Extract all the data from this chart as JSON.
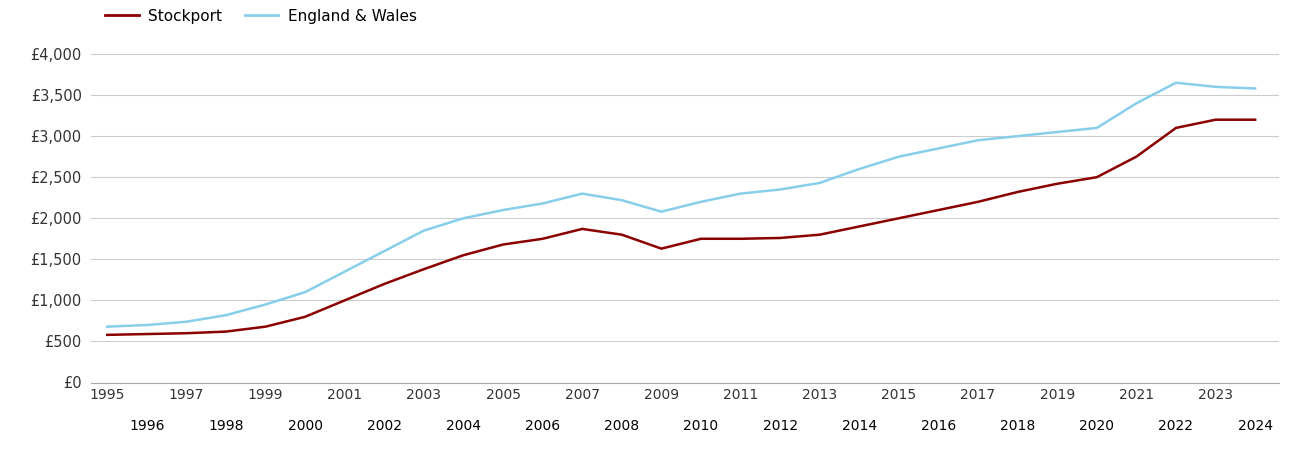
{
  "years": [
    1995,
    1996,
    1997,
    1998,
    1999,
    2000,
    2001,
    2002,
    2003,
    2004,
    2005,
    2006,
    2007,
    2008,
    2009,
    2010,
    2011,
    2012,
    2013,
    2014,
    2015,
    2016,
    2017,
    2018,
    2019,
    2020,
    2021,
    2022,
    2023,
    2024
  ],
  "stockport": [
    580,
    590,
    600,
    620,
    680,
    800,
    1000,
    1200,
    1380,
    1550,
    1680,
    1750,
    1870,
    1800,
    1630,
    1750,
    1750,
    1760,
    1800,
    1900,
    2000,
    2100,
    2200,
    2320,
    2420,
    2500,
    2750,
    3100,
    3200,
    3200
  ],
  "england_wales": [
    680,
    700,
    740,
    820,
    950,
    1100,
    1350,
    1600,
    1850,
    2000,
    2100,
    2180,
    2300,
    2220,
    2080,
    2200,
    2300,
    2350,
    2430,
    2600,
    2750,
    2850,
    2950,
    3000,
    3050,
    3100,
    3400,
    3650,
    3600,
    3580
  ],
  "stockport_color": "#8b0000",
  "england_wales_color": "#87ceeb",
  "background_color": "#ffffff",
  "grid_color": "#cccccc",
  "ylim": [
    0,
    4000
  ],
  "yticks": [
    0,
    500,
    1000,
    1500,
    2000,
    2500,
    3000,
    3500,
    4000
  ],
  "ytick_labels": [
    "£0",
    "£500",
    "£1,000",
    "£1,500",
    "£2,000",
    "£2,500",
    "£3,000",
    "£3,500",
    "£4,000"
  ],
  "legend_stockport": "Stockport",
  "legend_england_wales": "England & Wales",
  "line_width": 1.8,
  "xlim_left": 1994.6,
  "xlim_right": 2024.6
}
